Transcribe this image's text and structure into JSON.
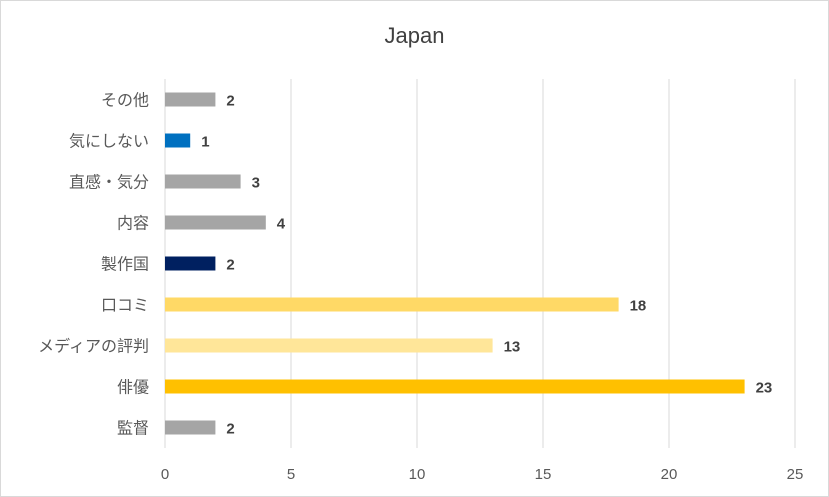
{
  "chart_data": {
    "type": "bar",
    "orientation": "horizontal",
    "title": "Japan",
    "xlabel": "",
    "ylabel": "",
    "xlim": [
      0,
      25
    ],
    "xticks": [
      0,
      5,
      10,
      15,
      20,
      25
    ],
    "grid": "vertical",
    "legend": "none",
    "categories": [
      "その他",
      "気にしない",
      "直感・気分",
      "内容",
      "製作国",
      "口コミ",
      "メディアの評判",
      "俳優",
      "監督"
    ],
    "values": [
      2,
      1,
      3,
      4,
      2,
      18,
      13,
      23,
      2
    ],
    "colors": [
      "#a5a5a5",
      "#0070c0",
      "#a5a5a5",
      "#a5a5a5",
      "#002060",
      "#ffd966",
      "#ffe699",
      "#ffc000",
      "#a5a5a5"
    ]
  }
}
